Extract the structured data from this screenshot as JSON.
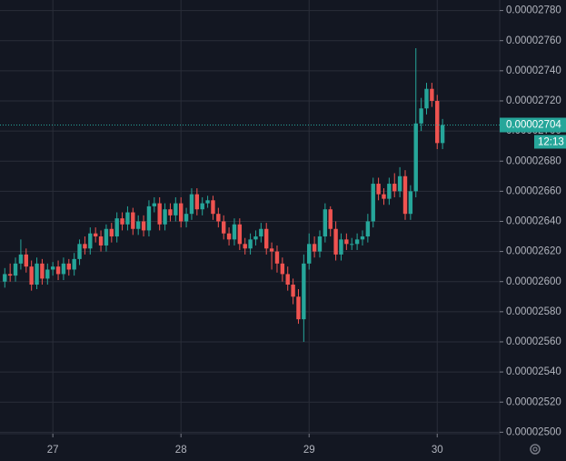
{
  "chart_data": {
    "type": "candlestick",
    "x": [
      -9,
      -8,
      -7,
      -6,
      -5,
      -4,
      -3,
      -2,
      -1,
      0,
      1,
      2,
      3,
      4,
      5,
      6,
      7,
      8,
      9,
      10,
      11,
      12,
      13,
      14,
      15,
      16,
      17,
      18,
      19,
      20,
      21,
      22,
      23,
      24,
      25,
      26,
      27,
      28,
      29,
      30,
      31,
      32,
      33,
      34,
      35,
      36,
      37,
      38,
      39,
      40,
      41,
      42,
      43,
      44,
      45,
      46,
      47,
      48,
      49,
      50,
      51,
      52,
      53,
      54,
      55,
      56,
      57,
      58,
      59,
      60,
      61,
      62,
      63,
      64,
      65,
      66,
      67,
      68,
      69,
      70,
      71,
      72,
      73
    ],
    "open": [
      2.6e-05,
      2.605e-05,
      2.604e-05,
      2.612e-05,
      2.618e-05,
      2.61e-05,
      2.598e-05,
      2.612e-05,
      2.602e-05,
      2.608e-05,
      2.61e-05,
      2.605e-05,
      2.612e-05,
      2.608e-05,
      2.615e-05,
      2.625e-05,
      2.622e-05,
      2.632e-05,
      2.63e-05,
      2.624e-05,
      2.635e-05,
      2.63e-05,
      2.642e-05,
      2.638e-05,
      2.646e-05,
      2.635e-05,
      2.64e-05,
      2.634e-05,
      2.65e-05,
      2.652e-05,
      2.638e-05,
      2.648e-05,
      2.644e-05,
      2.652e-05,
      2.64e-05,
      2.645e-05,
      2.658e-05,
      2.648e-05,
      2.652e-05,
      2.654e-05,
      2.645e-05,
      2.64e-05,
      2.632e-05,
      2.628e-05,
      2.638e-05,
      2.625e-05,
      2.622e-05,
      2.628e-05,
      2.63e-05,
      2.635e-05,
      2.622e-05,
      2.62e-05,
      2.612e-05,
      2.605e-05,
      2.598e-05,
      2.59e-05,
      2.575e-05,
      2.612e-05,
      2.625e-05,
      2.62e-05,
      2.63e-05,
      2.648e-05,
      2.635e-05,
      2.618e-05,
      2.628e-05,
      2.625e-05,
      2.625e-05,
      2.628e-05,
      2.63e-05,
      2.64e-05,
      2.665e-05,
      2.658e-05,
      2.655e-05,
      2.665e-05,
      2.66e-05,
      2.67e-05,
      2.645e-05,
      2.66e-05,
      2.705e-05,
      2.715e-05,
      2.728e-05,
      2.72e-05,
      2.692e-05
    ],
    "high": [
      2.609e-05,
      2.612e-05,
      2.616e-05,
      2.628e-05,
      2.622e-05,
      2.614e-05,
      2.616e-05,
      2.615e-05,
      2.612e-05,
      2.613e-05,
      2.614e-05,
      2.616e-05,
      2.615e-05,
      2.619e-05,
      2.628e-05,
      2.63e-05,
      2.636e-05,
      2.636e-05,
      2.634e-05,
      2.638e-05,
      2.639e-05,
      2.646e-05,
      2.646e-05,
      2.65e-05,
      2.649e-05,
      2.644e-05,
      2.644e-05,
      2.654e-05,
      2.656e-05,
      2.656e-05,
      2.652e-05,
      2.652e-05,
      2.656e-05,
      2.656e-05,
      2.649e-05,
      2.662e-05,
      2.662e-05,
      2.656e-05,
      2.657e-05,
      2.657e-05,
      2.649e-05,
      2.644e-05,
      2.636e-05,
      2.642e-05,
      2.642e-05,
      2.629e-05,
      2.632e-05,
      2.634e-05,
      2.639e-05,
      2.639e-05,
      2.626e-05,
      2.624e-05,
      2.616e-05,
      2.61e-05,
      2.602e-05,
      2.595e-05,
      2.618e-05,
      2.632e-05,
      2.63e-05,
      2.634e-05,
      2.652e-05,
      2.65e-05,
      2.64e-05,
      2.632e-05,
      2.632e-05,
      2.629e-05,
      2.632e-05,
      2.634e-05,
      2.645e-05,
      2.669e-05,
      2.669e-05,
      2.662e-05,
      2.669e-05,
      2.672e-05,
      2.676e-05,
      2.674e-05,
      2.664e-05,
      2.755e-05,
      2.722e-05,
      2.732e-05,
      2.732e-05,
      2.724e-05,
      2.708e-05
    ],
    "low": [
      2.596e-05,
      2.6e-05,
      2.6e-05,
      2.608e-05,
      2.606e-05,
      2.594e-05,
      2.595e-05,
      2.598e-05,
      2.598e-05,
      2.604e-05,
      2.601e-05,
      2.601e-05,
      2.604e-05,
      2.604e-05,
      2.611e-05,
      2.618e-05,
      2.618e-05,
      2.626e-05,
      2.62e-05,
      2.62e-05,
      2.626e-05,
      2.626e-05,
      2.634e-05,
      2.634e-05,
      2.631e-05,
      2.631e-05,
      2.63e-05,
      2.63e-05,
      2.646e-05,
      2.634e-05,
      2.634e-05,
      2.64e-05,
      2.64e-05,
      2.636e-05,
      2.636e-05,
      2.641e-05,
      2.644e-05,
      2.644e-05,
      2.649e-05,
      2.641e-05,
      2.636e-05,
      2.628e-05,
      2.624e-05,
      2.624e-05,
      2.621e-05,
      2.618e-05,
      2.618e-05,
      2.624e-05,
      2.626e-05,
      2.618e-05,
      2.608e-05,
      2.606e-05,
      2.6e-05,
      2.594e-05,
      2.585e-05,
      2.572e-05,
      2.56e-05,
      2.608e-05,
      2.616e-05,
      2.616e-05,
      2.626e-05,
      2.63e-05,
      2.614e-05,
      2.614e-05,
      2.621e-05,
      2.621e-05,
      2.621e-05,
      2.624e-05,
      2.626e-05,
      2.636e-05,
      2.654e-05,
      2.651e-05,
      2.651e-05,
      2.656e-05,
      2.656e-05,
      2.641e-05,
      2.641e-05,
      2.656e-05,
      2.7e-05,
      2.711e-05,
      2.716e-05,
      2.688e-05,
      2.688e-05
    ],
    "close": [
      2.605e-05,
      2.604e-05,
      2.612e-05,
      2.618e-05,
      2.61e-05,
      2.598e-05,
      2.612e-05,
      2.602e-05,
      2.608e-05,
      2.61e-05,
      2.605e-05,
      2.612e-05,
      2.608e-05,
      2.615e-05,
      2.625e-05,
      2.622e-05,
      2.632e-05,
      2.63e-05,
      2.624e-05,
      2.635e-05,
      2.63e-05,
      2.642e-05,
      2.638e-05,
      2.646e-05,
      2.635e-05,
      2.64e-05,
      2.634e-05,
      2.65e-05,
      2.652e-05,
      2.638e-05,
      2.648e-05,
      2.644e-05,
      2.652e-05,
      2.64e-05,
      2.645e-05,
      2.658e-05,
      2.648e-05,
      2.652e-05,
      2.654e-05,
      2.645e-05,
      2.64e-05,
      2.632e-05,
      2.628e-05,
      2.638e-05,
      2.625e-05,
      2.622e-05,
      2.628e-05,
      2.63e-05,
      2.635e-05,
      2.622e-05,
      2.62e-05,
      2.612e-05,
      2.605e-05,
      2.598e-05,
      2.59e-05,
      2.575e-05,
      2.612e-05,
      2.625e-05,
      2.62e-05,
      2.63e-05,
      2.648e-05,
      2.635e-05,
      2.618e-05,
      2.628e-05,
      2.625e-05,
      2.625e-05,
      2.628e-05,
      2.63e-05,
      2.64e-05,
      2.665e-05,
      2.658e-05,
      2.655e-05,
      2.665e-05,
      2.66e-05,
      2.67e-05,
      2.645e-05,
      2.66e-05,
      2.705e-05,
      2.715e-05,
      2.728e-05,
      2.72e-05,
      2.692e-05,
      2.704e-05
    ],
    "up_color": "#26a69a",
    "down_color": "#ef5350",
    "xlim": [
      -9.9,
      83.7
    ],
    "xticks": [
      {
        "value": 0,
        "label": "27"
      },
      {
        "value": 24,
        "label": "28"
      },
      {
        "value": 48,
        "label": "29"
      },
      {
        "value": 72,
        "label": "30"
      }
    ],
    "ylim": [
      2.499e-05,
      2.787e-05
    ],
    "yticks": [
      {
        "value": 2.5e-05,
        "label": "0.00002500"
      },
      {
        "value": 2.52e-05,
        "label": "0.00002520"
      },
      {
        "value": 2.54e-05,
        "label": "0.00002540"
      },
      {
        "value": 2.56e-05,
        "label": "0.00002560"
      },
      {
        "value": 2.58e-05,
        "label": "0.00002580"
      },
      {
        "value": 2.6e-05,
        "label": "0.00002600"
      },
      {
        "value": 2.62e-05,
        "label": "0.00002620"
      },
      {
        "value": 2.64e-05,
        "label": "0.00002640"
      },
      {
        "value": 2.66e-05,
        "label": "0.00002660"
      },
      {
        "value": 2.68e-05,
        "label": "0.00002680"
      },
      {
        "value": 2.7e-05,
        "label": "0.00002700"
      },
      {
        "value": 2.72e-05,
        "label": "0.00002720"
      },
      {
        "value": 2.74e-05,
        "label": "0.00002740"
      },
      {
        "value": 2.76e-05,
        "label": "0.00002760"
      },
      {
        "value": 2.78e-05,
        "label": "0.00002780"
      }
    ],
    "grid": true,
    "last_price": {
      "value": 2.704e-05,
      "label": "0.00002704"
    },
    "countdown": "12:13"
  }
}
